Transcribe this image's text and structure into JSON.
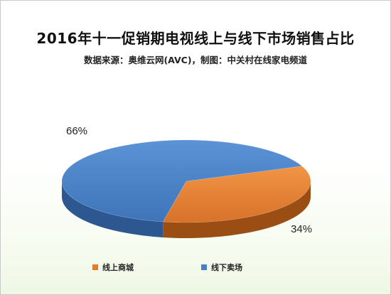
{
  "chart_data": {
    "type": "pie",
    "title": "2016年十一促销期电视线上与线下市场销售占比",
    "subtitle": "数据来源：奥维云网(AVC)，制图：中关村在线家电频道",
    "slices": [
      {
        "name": "线上商城",
        "value": 34,
        "label": "34%",
        "color": "#e07d2c"
      },
      {
        "name": "线下卖场",
        "value": 66,
        "label": "66%",
        "color": "#4a7fc1"
      }
    ],
    "legend_position": "bottom",
    "style": "3d"
  }
}
